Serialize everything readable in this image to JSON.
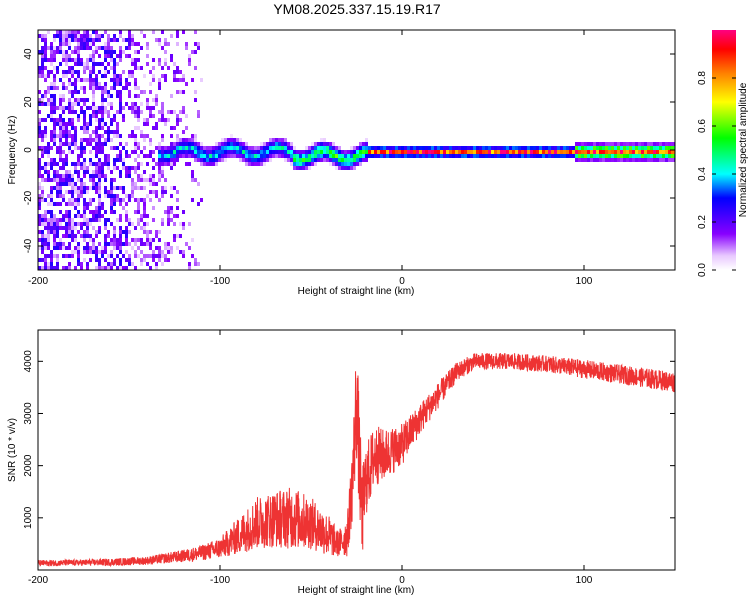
{
  "title": "YM08.2025.337.15.19.R17",
  "chart_data": [
    {
      "type": "heatmap",
      "title": "YM08.2025.337.15.19.R17",
      "xlabel": "Height of straight line (km)",
      "ylabel": "Frequency (Hz)",
      "xlim": [
        -200,
        150
      ],
      "ylim": [
        -50,
        50
      ],
      "xticks": [
        -200,
        -100,
        0,
        100
      ],
      "yticks": [
        -40,
        -20,
        0,
        20,
        40
      ],
      "colorbar": {
        "label": "Normalized spectral amplitude",
        "range": [
          0,
          1
        ],
        "ticks": [
          "0.0",
          "0.2",
          "0.4",
          "0.6",
          "0.8"
        ],
        "colors": [
          "#ffffff",
          "#8800ff",
          "#0000ff",
          "#00ffff",
          "#00ff00",
          "#ffff00",
          "#ff8000",
          "#ff0000",
          "#ff0080"
        ]
      },
      "features": {
        "noise_region_km": [
          -200,
          -110
        ],
        "noise_amplitude": 0.15,
        "signal_start_km": -135,
        "signal_frequency_hz": 0,
        "signal_peak_amplitude": 1.0
      }
    },
    {
      "type": "line",
      "xlabel": "Height of straight line (km)",
      "ylabel": "SNR (10 * v/v)",
      "xlim": [
        -200,
        150
      ],
      "ylim": [
        0,
        4600
      ],
      "xticks": [
        -200,
        -100,
        0,
        100
      ],
      "yticks": [
        1000,
        2000,
        3000,
        4000
      ],
      "color": "#ee3333",
      "series": [
        {
          "name": "SNR",
          "x": [
            -200,
            -180,
            -160,
            -140,
            -120,
            -110,
            -100,
            -90,
            -80,
            -70,
            -60,
            -50,
            -40,
            -35,
            -30,
            -27,
            -25,
            -22,
            -20,
            -15,
            -10,
            -5,
            0,
            5,
            10,
            20,
            30,
            40,
            60,
            80,
            100,
            120,
            150
          ],
          "y": [
            130,
            140,
            150,
            180,
            270,
            330,
            420,
            650,
            900,
            980,
            1000,
            900,
            650,
            500,
            650,
            1800,
            3300,
            1000,
            1700,
            2200,
            2200,
            2300,
            2400,
            2650,
            2900,
            3350,
            3800,
            4000,
            4000,
            3950,
            3850,
            3750,
            3600
          ],
          "noise_amplitude": [
            60,
            60,
            70,
            80,
            120,
            150,
            200,
            350,
            500,
            550,
            600,
            500,
            400,
            250,
            400,
            800,
            1200,
            900,
            700,
            600,
            500,
            450,
            400,
            350,
            300,
            250,
            180,
            160,
            160,
            160,
            180,
            180,
            200
          ]
        }
      ]
    }
  ]
}
